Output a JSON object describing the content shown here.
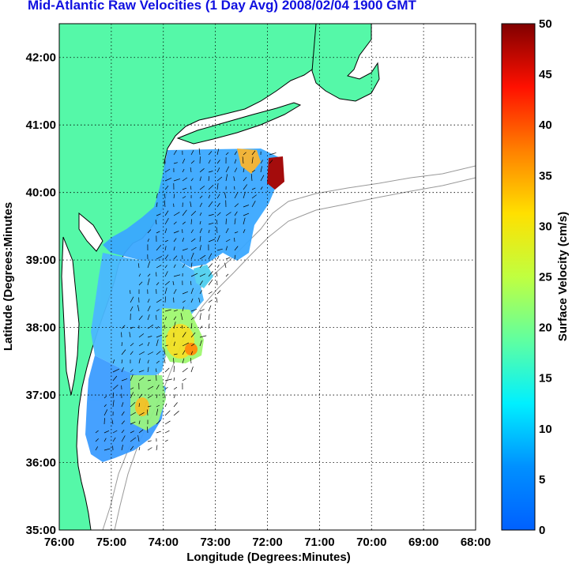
{
  "title": "Mid-Atlantic Raw Velocities (1 Day Avg) 2008/02/04 1900 GMT",
  "map": {
    "xlabel": "Longitude (Degrees:Minutes)",
    "ylabel": "Latitude (Degrees:Minutes",
    "lon_ticks": [
      "76:00",
      "75:00",
      "74:00",
      "73:00",
      "72:00",
      "71:00",
      "70:00",
      "69:00",
      "68:00"
    ],
    "lat_ticks": [
      "42:00",
      "41:00",
      "40:00",
      "39:00",
      "38:00",
      "37:00",
      "36:00",
      "35:00"
    ],
    "lon_range": [
      -76,
      -68
    ],
    "lat_range": [
      35,
      42.5
    ],
    "land_color": "#55f8a8",
    "grid": "dotted"
  },
  "colorbar": {
    "label": "Surface Velocity (cm/s)",
    "ticks": [
      "0",
      "5",
      "10",
      "15",
      "20",
      "25",
      "30",
      "35",
      "40",
      "45",
      "50"
    ],
    "range": [
      0,
      50
    ],
    "colormap": "jet"
  }
}
